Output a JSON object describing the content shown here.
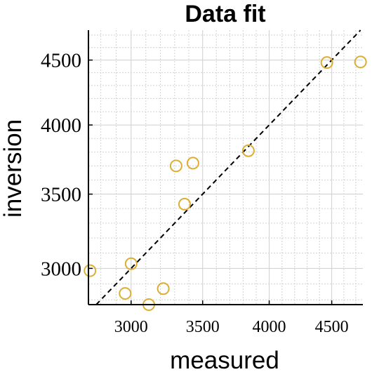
{
  "chart_data": {
    "type": "scatter",
    "title": "Data fit",
    "xlabel": "measured",
    "ylabel": "inversion",
    "xlim": [
      2720,
      4760
    ],
    "ylim": [
      2770,
      4740
    ],
    "xticks": [
      3000,
      3500,
      4000,
      4500
    ],
    "yticks": [
      3000,
      3500,
      4000,
      4500
    ],
    "grid": true,
    "minor_grid": true,
    "scale": "sqrt",
    "reference_line": "y = x",
    "marker_color": "#dcae33",
    "series": [
      {
        "points": [
          {
            "x": 2730,
            "y": 2985
          },
          {
            "x": 2960,
            "y": 2840
          },
          {
            "x": 3000,
            "y": 3030
          },
          {
            "x": 3120,
            "y": 2770
          },
          {
            "x": 3220,
            "y": 2870
          },
          {
            "x": 3310,
            "y": 3700
          },
          {
            "x": 3370,
            "y": 3430
          },
          {
            "x": 3430,
            "y": 3720
          },
          {
            "x": 3840,
            "y": 3810
          },
          {
            "x": 4460,
            "y": 4480
          },
          {
            "x": 4740,
            "y": 4485
          }
        ]
      }
    ]
  }
}
